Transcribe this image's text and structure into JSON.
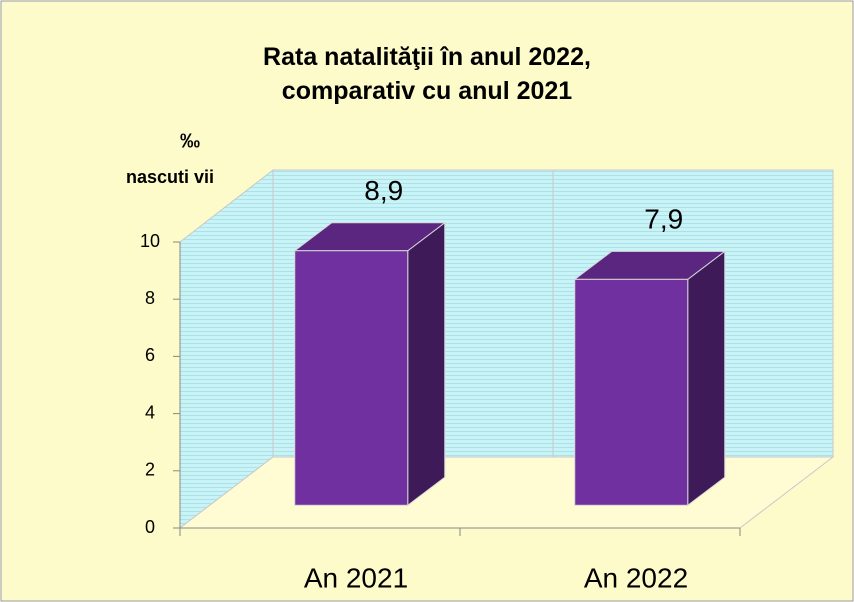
{
  "chart_data": {
    "type": "bar3d",
    "title": "Rata natalităţii în anul 2022, comparativ cu anul 2021",
    "ylabel_unit": "‰",
    "ylabel": "nascuti vii",
    "categories": [
      "An 2021",
      "An 2022"
    ],
    "values": [
      8.9,
      7.9
    ],
    "value_labels": [
      "8,9",
      "7,9"
    ],
    "color": "#7030a0",
    "ylim": [
      0,
      10
    ],
    "yticks": [
      0,
      2,
      4,
      6,
      8,
      10
    ],
    "grid": false
  }
}
